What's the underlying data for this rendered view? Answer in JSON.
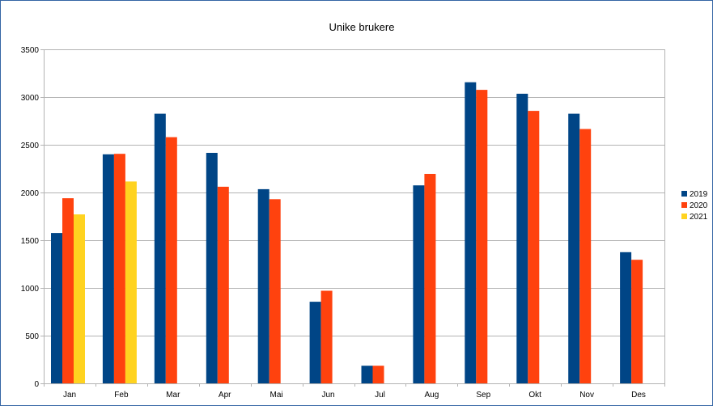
{
  "chart_data": {
    "type": "bar",
    "title": "Unike brukere",
    "xlabel": "",
    "ylabel": "",
    "ylim": [
      0,
      3500
    ],
    "yticks": [
      0,
      500,
      1000,
      1500,
      2000,
      2500,
      3000,
      3500
    ],
    "grid": true,
    "legend_position": "right",
    "categories": [
      "Jan",
      "Feb",
      "Mar",
      "Apr",
      "Mai",
      "Jun",
      "Jul",
      "Aug",
      "Sep",
      "Okt",
      "Nov",
      "Des"
    ],
    "series": [
      {
        "name": "2019",
        "color": "#004586",
        "values": [
          1575,
          2400,
          2825,
          2415,
          2035,
          855,
          185,
          2075,
          3155,
          3035,
          2825,
          1375
        ]
      },
      {
        "name": "2020",
        "color": "#ff420e",
        "values": [
          1940,
          2405,
          2580,
          2060,
          1930,
          970,
          185,
          2195,
          3075,
          2855,
          2665,
          1295
        ]
      },
      {
        "name": "2021",
        "color": "#ffd320",
        "values": [
          1770,
          2115,
          null,
          null,
          null,
          null,
          null,
          null,
          null,
          null,
          null,
          null
        ]
      }
    ]
  }
}
